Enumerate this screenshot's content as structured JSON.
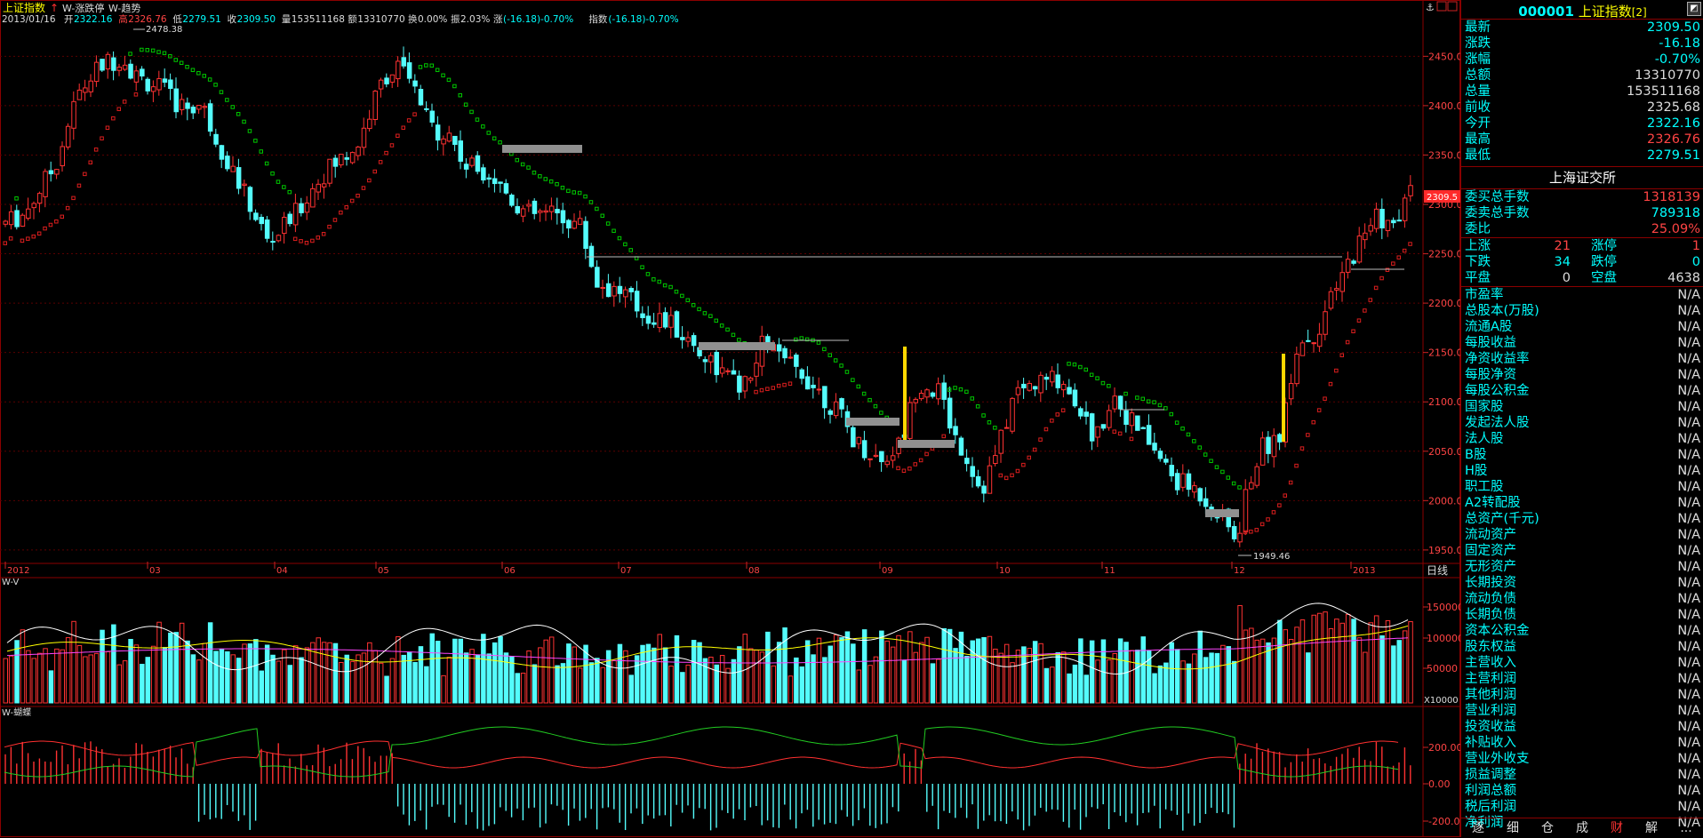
{
  "header": {
    "index_name": "上证指数",
    "indicator1": "W-涨跌停",
    "indicator2": "W-趋势",
    "date": "2013/01/16",
    "open_label": "开",
    "open": "2322.16",
    "high_label": "高",
    "high": "2326.76",
    "low_label": "低",
    "low": "2279.51",
    "close_label": "收",
    "close": "2309.50",
    "volume_label": "量",
    "volume": "153511168",
    "amount_label": "额",
    "amount": "13310770",
    "turnover_label": "换",
    "turnover": "0.00%",
    "amplitude_label": "振",
    "amplitude": "2.03%",
    "change_label": "涨",
    "change": "(-16.18)-0.70%",
    "index_label": "指数",
    "index_change": "(-16.18)-0.70%"
  },
  "chart_data": {
    "type": "candlestick",
    "price_axis": {
      "min": 1940,
      "max": 2480,
      "ticks": [
        "2450.0",
        "2400.0",
        "2350.0",
        "2300.0",
        "2250.0",
        "2200.0",
        "2150.0",
        "2100.0",
        "2050.0",
        "2000.0",
        "1950.0"
      ]
    },
    "months": [
      "2012",
      "03",
      "04",
      "05",
      "06",
      "07",
      "08",
      "09",
      "10",
      "11",
      "12",
      "2013"
    ],
    "period_label": "日线",
    "max_label": "2478.38",
    "min_label": "1949.46",
    "last_price_label": "2309.5",
    "volume_panel": {
      "title": "W-V",
      "ticks": [
        "150000",
        "100000",
        "50000"
      ],
      "unit": "X10000"
    },
    "butterfly_panel": {
      "title": "W-蝴蝶",
      "ticks": [
        "200.00",
        "0.00",
        "-200.00"
      ]
    },
    "colors": {
      "up": "#ff3232",
      "down": "#54fcfc",
      "trend_up": "#dc1e1e",
      "trend_down": "#00c800",
      "limit": "#ffd700",
      "box": "#909090"
    }
  },
  "panel": {
    "code": "000001",
    "name": "上证指数",
    "suffix": "[2]",
    "quotes": [
      {
        "label": "最新",
        "value": "2309.50",
        "color": "#00ffff"
      },
      {
        "label": "涨跌",
        "value": "-16.18",
        "color": "#00ffff"
      },
      {
        "label": "涨幅",
        "value": "-0.70%",
        "color": "#00ffff"
      },
      {
        "label": "总额",
        "value": "13310770",
        "color": "#dddddd"
      },
      {
        "label": "总量",
        "value": "153511168",
        "color": "#dddddd"
      },
      {
        "label": "前收",
        "value": "2325.68",
        "color": "#dddddd"
      },
      {
        "label": "今开",
        "value": "2322.16",
        "color": "#00ffff"
      },
      {
        "label": "最高",
        "value": "2326.76",
        "color": "#ff4444"
      },
      {
        "label": "最低",
        "value": "2279.51",
        "color": "#00ffff"
      }
    ],
    "exchange": "上海证交所",
    "orders": [
      {
        "label": "委买总手数",
        "value": "1318139",
        "color": "#ff4444"
      },
      {
        "label": "委卖总手数",
        "value": "789318",
        "color": "#00ffff"
      },
      {
        "label": "委比",
        "value": "25.09%",
        "color": "#ff4444"
      }
    ],
    "breadth": [
      {
        "label": "上涨",
        "value": "21",
        "color": "#ff4444",
        "label2": "涨停",
        "value2": "1",
        "color2": "#ff4444"
      },
      {
        "label": "下跌",
        "value": "34",
        "color": "#00ffff",
        "label2": "跌停",
        "value2": "0",
        "color2": "#00ffff"
      },
      {
        "label": "平盘",
        "value": "0",
        "color": "#dddddd",
        "label2": "空盘",
        "value2": "4638",
        "color2": "#dddddd"
      }
    ],
    "finance": [
      {
        "label": "市盈率",
        "value": "N/A"
      },
      {
        "label": "总股本(万股)",
        "value": "N/A"
      },
      {
        "label": "流通A股",
        "value": "N/A"
      },
      {
        "label": "每股收益",
        "value": "N/A"
      },
      {
        "label": "净资收益率",
        "value": "N/A"
      },
      {
        "label": "每股净资",
        "value": "N/A"
      },
      {
        "label": "每股公积金",
        "value": "N/A"
      },
      {
        "label": "国家股",
        "value": "N/A"
      },
      {
        "label": "发起法人股",
        "value": "N/A"
      },
      {
        "label": "法人股",
        "value": "N/A"
      },
      {
        "label": "B股",
        "value": "N/A"
      },
      {
        "label": "H股",
        "value": "N/A"
      },
      {
        "label": "职工股",
        "value": "N/A"
      },
      {
        "label": "A2转配股",
        "value": "N/A"
      },
      {
        "label": "总资产(千元)",
        "value": "N/A"
      },
      {
        "label": "流动资产",
        "value": "N/A"
      },
      {
        "label": "固定资产",
        "value": "N/A"
      },
      {
        "label": "无形资产",
        "value": "N/A"
      },
      {
        "label": "长期投资",
        "value": "N/A"
      },
      {
        "label": "流动负债",
        "value": "N/A"
      },
      {
        "label": "长期负债",
        "value": "N/A"
      },
      {
        "label": "资本公积金",
        "value": "N/A"
      },
      {
        "label": "股东权益",
        "value": "N/A"
      },
      {
        "label": "主营收入",
        "value": "N/A"
      },
      {
        "label": "主营利润",
        "value": "N/A"
      },
      {
        "label": "其他利润",
        "value": "N/A"
      },
      {
        "label": "营业利润",
        "value": "N/A"
      },
      {
        "label": "投资收益",
        "value": "N/A"
      },
      {
        "label": "补贴收入",
        "value": "N/A"
      },
      {
        "label": "营业外收支",
        "value": "N/A"
      },
      {
        "label": "损益调整",
        "value": "N/A"
      },
      {
        "label": "利润总额",
        "value": "N/A"
      },
      {
        "label": "税后利润",
        "value": "N/A"
      },
      {
        "label": "净利润",
        "value": "N/A"
      }
    ],
    "tabs": [
      "逐",
      "细",
      "仓",
      "成",
      "财",
      "解",
      "..."
    ],
    "active_tab": 4
  }
}
